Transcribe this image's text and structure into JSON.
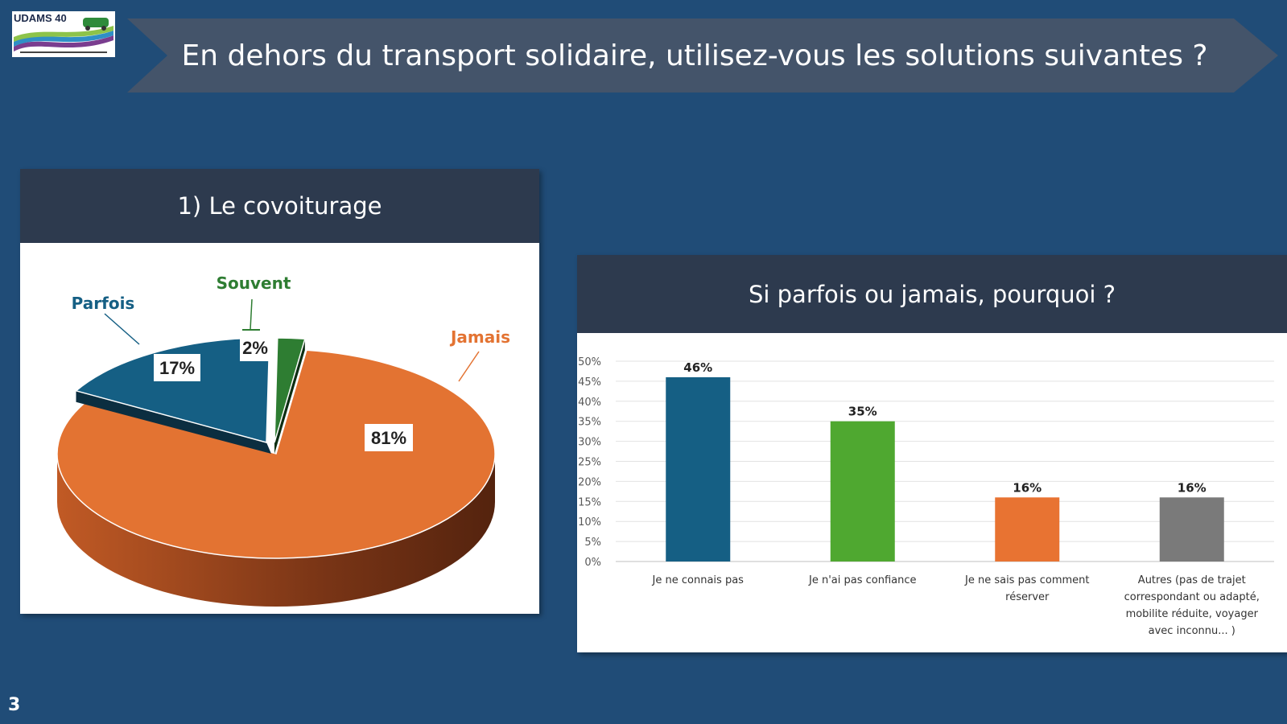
{
  "slide": {
    "number": "3",
    "logo_text": "UDAMS 40",
    "title": "En dehors du transport solidaire, utilisez-vous les solutions suivantes ?"
  },
  "colors": {
    "background": "#204c77",
    "banner": "#44546a",
    "panel_header": "#2d3a4e",
    "parfois": "#155f84",
    "souvent": "#2e7d32",
    "jamais": "#e37332",
    "bar_blue": "#155f84",
    "bar_green": "#4fa830",
    "bar_orange": "#e87332",
    "bar_gray": "#7a7a7a"
  },
  "pie_panel": {
    "title": "1) Le covoiturage"
  },
  "bar_panel": {
    "title": "Si parfois ou jamais, pourquoi ?"
  },
  "chart_data": [
    {
      "type": "pie",
      "title": "1) Le covoiturage",
      "slices": [
        {
          "name": "Jamais",
          "value": 81,
          "label": "81%"
        },
        {
          "name": "Parfois",
          "value": 17,
          "label": "17%"
        },
        {
          "name": "Souvent",
          "value": 2,
          "label": "2%"
        }
      ]
    },
    {
      "type": "bar",
      "title": "Si parfois ou jamais, pourquoi ?",
      "categories": [
        [
          "Je ne connais pas"
        ],
        [
          "Je n'ai pas confiance"
        ],
        [
          "Je ne sais pas comment",
          "réserver"
        ],
        [
          "Autres (pas de trajet",
          "correspondant ou adapté,",
          "mobilite réduite, voyager",
          "avec inconnu... )"
        ]
      ],
      "values": [
        46,
        35,
        16,
        16
      ],
      "value_labels": [
        "46%",
        "35%",
        "16%",
        "16%"
      ],
      "ylim": [
        0,
        50
      ],
      "yticks": [
        "0%",
        "5%",
        "10%",
        "15%",
        "20%",
        "25%",
        "30%",
        "35%",
        "40%",
        "45%",
        "50%"
      ],
      "grid": true
    }
  ]
}
